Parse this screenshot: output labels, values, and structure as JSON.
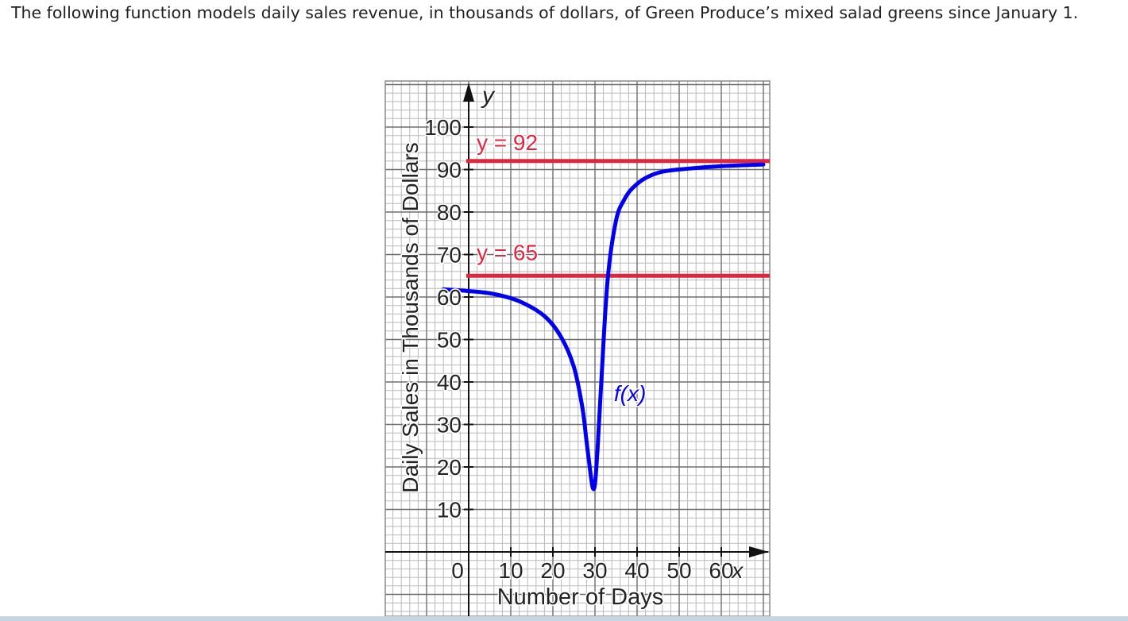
{
  "prompt": {
    "text": "The following function models daily sales revenue, in thousands of dollars, of Green Produce’s mixed salad greens since January 1."
  },
  "colors": {
    "curve": "#0000ee",
    "asymptote": "#e0263f",
    "grid_minor": "#b9b9b9",
    "grid_major": "#6e6e6e",
    "axis": "#111111",
    "text": "#222222"
  },
  "chart_data": {
    "type": "line",
    "title": "",
    "xlabel": "Number of Days",
    "ylabel": "Daily Sales in Thousands of Dollars",
    "x_axis_letter": "x",
    "y_axis_letter": "y",
    "origin_label": "0",
    "xlim": [
      0,
      70
    ],
    "ylim": [
      0,
      100
    ],
    "grid": true,
    "x_ticks": [
      "10",
      "20",
      "30",
      "40",
      "50",
      "60"
    ],
    "x_tick_values": [
      10,
      20,
      30,
      40,
      50,
      60
    ],
    "y_ticks": [
      "10",
      "20",
      "30",
      "40",
      "50",
      "60",
      "70",
      "80",
      "90",
      "100"
    ],
    "y_tick_values": [
      10,
      20,
      30,
      40,
      50,
      60,
      70,
      80,
      90,
      100
    ],
    "asymptotes": [
      {
        "label": "y = 92",
        "value": 92
      },
      {
        "label": "y = 65",
        "value": 65
      }
    ],
    "series": [
      {
        "name": "f(x)",
        "x": [
          -6,
          0,
          6,
          12,
          18,
          22,
          25,
          27,
          28,
          29,
          29.5,
          30,
          30.6,
          31.5,
          33,
          35,
          37,
          39,
          42,
          46,
          52,
          60,
          70
        ],
        "y": [
          61.8,
          61.4,
          60.7,
          59,
          55.5,
          50.5,
          43.5,
          34,
          26,
          18,
          15,
          16,
          24,
          40,
          64,
          78,
          83,
          85.7,
          88,
          89.5,
          90.2,
          90.8,
          91.2
        ]
      }
    ]
  }
}
